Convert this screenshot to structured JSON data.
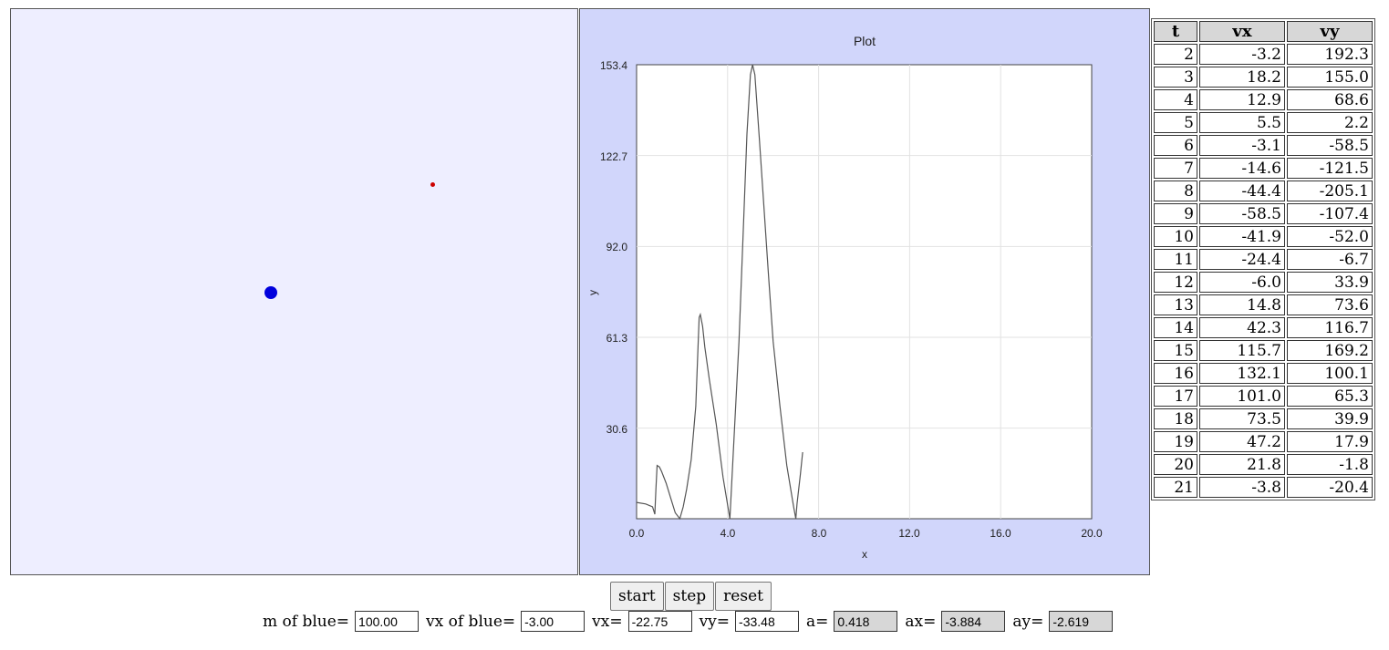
{
  "plot": {
    "title": "Plot",
    "xlabel": "x",
    "ylabel": "y",
    "x_ticks": [
      "0.0",
      "4.0",
      "8.0",
      "12.0",
      "16.0",
      "20.0"
    ],
    "y_ticks": [
      "153.4",
      "122.7",
      "92.0",
      "61.3",
      "30.6"
    ]
  },
  "chart_data": {
    "type": "line",
    "title": "Plot",
    "xlabel": "x",
    "ylabel": "y",
    "xlim": [
      0,
      20
    ],
    "ylim": [
      0,
      153.4
    ],
    "grid": true,
    "series": [
      {
        "x": [
          0,
          0.4,
          0.7,
          0.8,
          0.85,
          0.9,
          1.0,
          1.1,
          1.3,
          1.5,
          1.7,
          1.9,
          2.05,
          2.2,
          2.4,
          2.6,
          2.75,
          2.8,
          2.9,
          3.0,
          3.2,
          3.5,
          3.8,
          4.1,
          4.3,
          4.5,
          4.7,
          4.85,
          5.0,
          5.1,
          5.2,
          5.4,
          5.6,
          5.8,
          6.0,
          6.3,
          6.6,
          6.9,
          7.0,
          7.05,
          7.2,
          7.3
        ],
        "y": [
          5.5,
          5,
          4,
          1.5,
          10,
          18,
          17.5,
          16,
          12,
          7,
          2,
          0,
          4,
          10,
          20,
          38,
          68,
          69,
          65,
          58,
          47,
          32,
          14,
          0,
          30,
          60,
          100,
          130,
          150,
          153.4,
          150,
          128,
          105,
          82,
          60,
          38,
          18,
          4,
          0,
          5,
          15,
          22.5
        ]
      }
    ]
  },
  "table": {
    "headers": [
      "t",
      "vx",
      "vy"
    ],
    "rows": [
      [
        "2",
        "-3.2",
        "192.3"
      ],
      [
        "3",
        "18.2",
        "155.0"
      ],
      [
        "4",
        "12.9",
        "68.6"
      ],
      [
        "5",
        "5.5",
        "2.2"
      ],
      [
        "6",
        "-3.1",
        "-58.5"
      ],
      [
        "7",
        "-14.6",
        "-121.5"
      ],
      [
        "8",
        "-44.4",
        "-205.1"
      ],
      [
        "9",
        "-58.5",
        "-107.4"
      ],
      [
        "10",
        "-41.9",
        "-52.0"
      ],
      [
        "11",
        "-24.4",
        "-6.7"
      ],
      [
        "12",
        "-6.0",
        "33.9"
      ],
      [
        "13",
        "14.8",
        "73.6"
      ],
      [
        "14",
        "42.3",
        "116.7"
      ],
      [
        "15",
        "115.7",
        "169.2"
      ],
      [
        "16",
        "132.1",
        "100.1"
      ],
      [
        "17",
        "101.0",
        "65.3"
      ],
      [
        "18",
        "73.5",
        "39.9"
      ],
      [
        "19",
        "47.2",
        "17.9"
      ],
      [
        "20",
        "21.8",
        "-1.8"
      ],
      [
        "21",
        "-3.8",
        "-20.4"
      ]
    ]
  },
  "controls": {
    "start_label": "start",
    "step_label": "step",
    "reset_label": "reset",
    "m_blue_label": "m of blue=",
    "m_blue_value": "100.00",
    "vx_blue_label": "vx of blue=",
    "vx_blue_value": "-3.00",
    "vx_label": "vx=",
    "vx_value": "-22.75",
    "vy_label": "vy=",
    "vy_value": "-33.48",
    "a_label": "a=",
    "a_value": "0.418",
    "ax_label": "ax=",
    "ax_value": "-3.884",
    "ay_label": "ay=",
    "ay_value": "-2.619"
  },
  "colors": {
    "sim_bg": "#eeeeff",
    "plot_bg": "#d1d6fb",
    "blue_particle": "#0000dd",
    "red_particle": "#cc0000"
  }
}
